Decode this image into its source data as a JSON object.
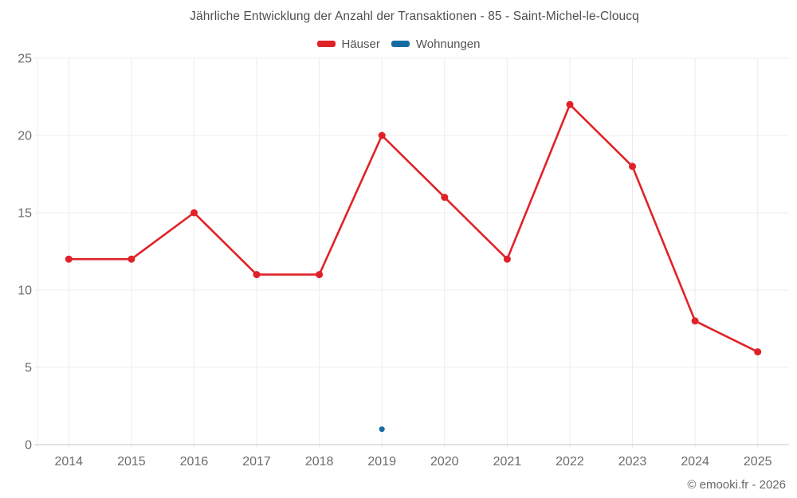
{
  "title": "Jährliche Entwicklung der Anzahl der Transaktionen - 85 - Saint-Michel-le-Cloucq",
  "footer": "© emooki.fr - 2026",
  "colors": {
    "haeuser_red": "#e02228",
    "wohnungen_blue": "#166ba3"
  },
  "chart_data": {
    "type": "line",
    "title": "Jährliche Entwicklung der Anzahl der Transaktionen - 85 - Saint-Michel-le-Cloucq",
    "categories": [
      "2014",
      "2015",
      "2016",
      "2017",
      "2018",
      "2019",
      "2020",
      "2021",
      "2022",
      "2023",
      "2024",
      "2025"
    ],
    "series": [
      {
        "name": "Häuser",
        "color": "#e02228",
        "values": [
          12,
          12,
          15,
          11,
          11,
          20,
          16,
          12,
          22,
          18,
          8,
          6
        ]
      },
      {
        "name": "Wohnungen",
        "color": "#166ba3",
        "values": [
          null,
          null,
          null,
          null,
          null,
          1,
          null,
          null,
          null,
          null,
          null,
          null
        ]
      }
    ],
    "xlabel": "",
    "ylabel": "",
    "ylim": [
      0,
      25
    ],
    "yticks": [
      0,
      5,
      10,
      15,
      20,
      25
    ],
    "grid": true,
    "legend_position": "top"
  }
}
